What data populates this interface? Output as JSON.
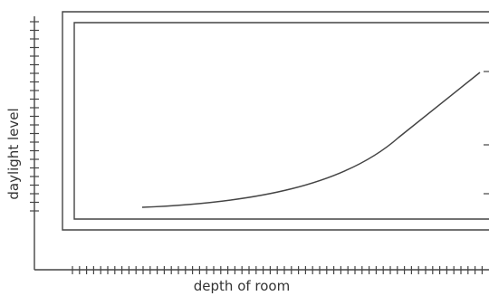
{
  "diagram": {
    "x_axis_label": "depth of room",
    "y_axis_label": "daylight  level",
    "colors": {
      "line": "#444444",
      "text": "#333333",
      "background": "#ffffff"
    },
    "curve": {
      "shape": "rising-exponential",
      "description_of_trend": ""
    },
    "frames": {
      "outer_room_outline": "rectangle",
      "inner_room_outline": "rectangle",
      "window_side": "right"
    }
  }
}
